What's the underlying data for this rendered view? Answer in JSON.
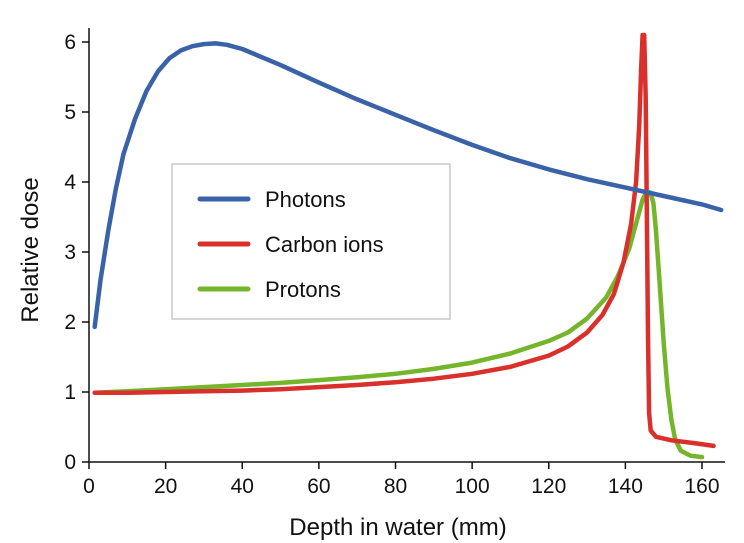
{
  "chart_data": {
    "type": "line",
    "title": "",
    "xlabel": "Depth in water (mm)",
    "ylabel": "Relative dose",
    "xlim": [
      0,
      166
    ],
    "ylim": [
      0,
      6.2
    ],
    "xticks": [
      0,
      20,
      40,
      60,
      80,
      100,
      120,
      140,
      160
    ],
    "yticks": [
      0,
      1,
      2,
      3,
      4,
      5,
      6
    ],
    "grid": false,
    "legend": "center-left",
    "series": [
      {
        "name": "Photons",
        "color": "#3a62a8",
        "points": [
          [
            1.5,
            1.93
          ],
          [
            3,
            2.6
          ],
          [
            5,
            3.3
          ],
          [
            7,
            3.9
          ],
          [
            9,
            4.4
          ],
          [
            12,
            4.9
          ],
          [
            15,
            5.3
          ],
          [
            18,
            5.58
          ],
          [
            21,
            5.77
          ],
          [
            24,
            5.88
          ],
          [
            27,
            5.94
          ],
          [
            30,
            5.97
          ],
          [
            33,
            5.98
          ],
          [
            36,
            5.96
          ],
          [
            40,
            5.9
          ],
          [
            50,
            5.67
          ],
          [
            60,
            5.42
          ],
          [
            70,
            5.18
          ],
          [
            80,
            4.96
          ],
          [
            90,
            4.74
          ],
          [
            100,
            4.53
          ],
          [
            110,
            4.34
          ],
          [
            120,
            4.18
          ],
          [
            130,
            4.04
          ],
          [
            140,
            3.92
          ],
          [
            150,
            3.8
          ],
          [
            160,
            3.68
          ],
          [
            165,
            3.6
          ]
        ]
      },
      {
        "name": "Carbon ions",
        "color": "#d9302c",
        "points": [
          [
            1.5,
            0.99
          ],
          [
            10,
            0.99
          ],
          [
            20,
            1.0
          ],
          [
            30,
            1.01
          ],
          [
            40,
            1.02
          ],
          [
            50,
            1.04
          ],
          [
            60,
            1.07
          ],
          [
            70,
            1.1
          ],
          [
            80,
            1.14
          ],
          [
            90,
            1.19
          ],
          [
            100,
            1.26
          ],
          [
            110,
            1.36
          ],
          [
            120,
            1.52
          ],
          [
            125,
            1.65
          ],
          [
            130,
            1.85
          ],
          [
            134,
            2.1
          ],
          [
            137,
            2.4
          ],
          [
            139.5,
            2.85
          ],
          [
            141.5,
            3.4
          ],
          [
            142.8,
            4.0
          ],
          [
            143.6,
            4.8
          ],
          [
            144.1,
            5.6
          ],
          [
            144.5,
            6.1
          ],
          [
            144.9,
            6.1
          ],
          [
            145.3,
            5.2
          ],
          [
            145.6,
            3.6
          ],
          [
            145.9,
            1.8
          ],
          [
            146.2,
            0.7
          ],
          [
            146.6,
            0.45
          ],
          [
            148,
            0.36
          ],
          [
            152,
            0.31
          ],
          [
            158,
            0.27
          ],
          [
            163,
            0.23
          ]
        ]
      },
      {
        "name": "Protons",
        "color": "#75b52c",
        "points": [
          [
            1.5,
            0.99
          ],
          [
            10,
            1.01
          ],
          [
            20,
            1.04
          ],
          [
            30,
            1.07
          ],
          [
            40,
            1.1
          ],
          [
            50,
            1.13
          ],
          [
            60,
            1.17
          ],
          [
            70,
            1.21
          ],
          [
            80,
            1.26
          ],
          [
            90,
            1.33
          ],
          [
            100,
            1.42
          ],
          [
            110,
            1.55
          ],
          [
            120,
            1.73
          ],
          [
            125,
            1.85
          ],
          [
            130,
            2.05
          ],
          [
            135,
            2.35
          ],
          [
            138,
            2.65
          ],
          [
            141,
            3.05
          ],
          [
            143,
            3.45
          ],
          [
            144.5,
            3.75
          ],
          [
            145.5,
            3.85
          ],
          [
            146.5,
            3.85
          ],
          [
            147.3,
            3.7
          ],
          [
            148,
            3.3
          ],
          [
            149,
            2.5
          ],
          [
            150,
            1.7
          ],
          [
            151,
            1.05
          ],
          [
            152,
            0.6
          ],
          [
            153,
            0.32
          ],
          [
            154.5,
            0.16
          ],
          [
            157,
            0.09
          ],
          [
            160,
            0.07
          ]
        ]
      }
    ]
  }
}
